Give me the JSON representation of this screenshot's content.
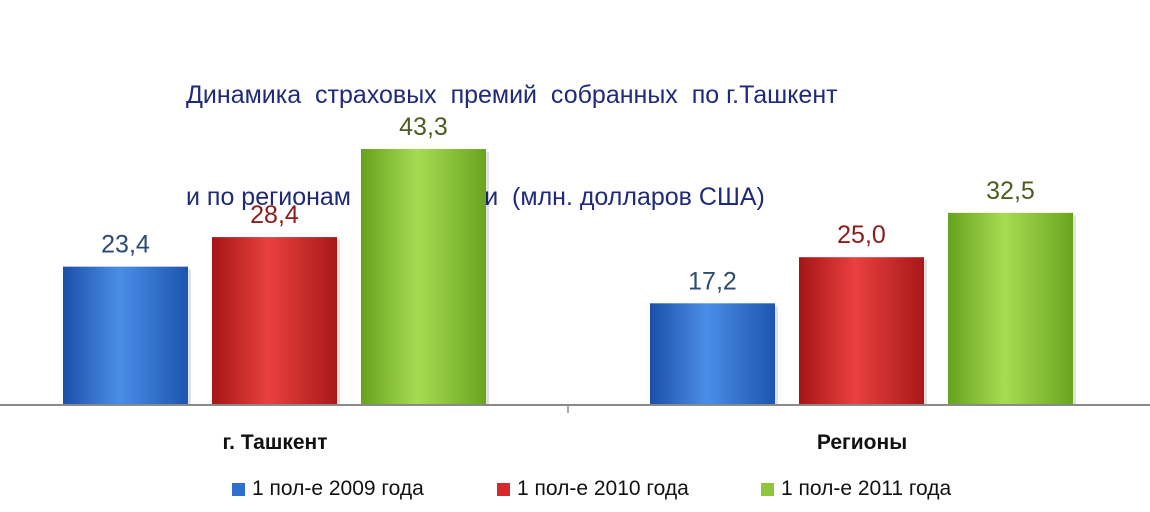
{
  "chart_data": {
    "type": "bar",
    "title": "Динамика  страховых  премий  собранных  по г.Ташкент",
    "subtitle": "и по регионам  республики  (млн. долларов США)",
    "categories": [
      "г. Ташкент",
      "Регионы"
    ],
    "series": [
      {
        "name": "1 пол-е 2009 года",
        "values": [
          23.4,
          17.2
        ],
        "labels": [
          "23,4",
          "17,2"
        ],
        "color": "#2f6fd0",
        "label_color": "#2c4a73"
      },
      {
        "name": "1 пол-е 2010 года",
        "values": [
          28.4,
          25.0
        ],
        "labels": [
          "28,4",
          "25,0"
        ],
        "color": "#d42a2a",
        "label_color": "#8b1c1c"
      },
      {
        "name": "1 пол-е 2011 года",
        "values": [
          43.3,
          32.5
        ],
        "labels": [
          "43,3",
          "32,5"
        ],
        "color": "#8fc63c",
        "label_color": "#4a5e1f"
      }
    ],
    "ylim": [
      0,
      43.3
    ],
    "grid": false,
    "legend": "bottom"
  }
}
